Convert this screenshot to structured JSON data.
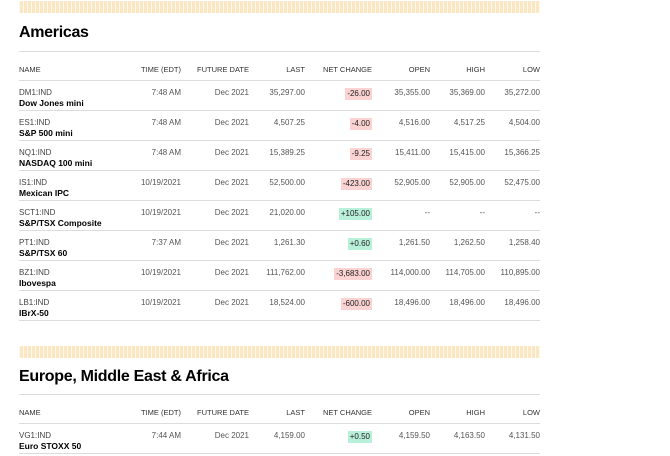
{
  "americas": {
    "title": "Americas",
    "headers": [
      "NAME",
      "TIME (EDT)",
      "FUTURE DATE",
      "LAST",
      "NET CHANGE",
      "OPEN",
      "HIGH",
      "LOW"
    ],
    "rows": [
      {
        "ticker": "DM1:IND",
        "name": "Dow Jones mini",
        "time": "7:48 AM",
        "date": "Dec 2021",
        "last": "35,297.00",
        "change": "-26.00",
        "direction": "down",
        "open": "35,355.00",
        "high": "35,369.00",
        "low": "35,272.00"
      },
      {
        "ticker": "ES1:IND",
        "name": "S&P 500 mini",
        "time": "7:48 AM",
        "date": "Dec 2021",
        "last": "4,507.25",
        "change": "-4.00",
        "direction": "down",
        "open": "4,516.00",
        "high": "4,517.25",
        "low": "4,504.00"
      },
      {
        "ticker": "NQ1:IND",
        "name": "NASDAQ 100 mini",
        "time": "7:48 AM",
        "date": "Dec 2021",
        "last": "15,389.25",
        "change": "-9.25",
        "direction": "down",
        "open": "15,411.00",
        "high": "15,415.00",
        "low": "15,366.25"
      },
      {
        "ticker": "IS1:IND",
        "name": "Mexican IPC",
        "time": "10/19/2021",
        "date": "Dec 2021",
        "last": "52,500.00",
        "change": "-423.00",
        "direction": "down",
        "open": "52,905.00",
        "high": "52,905.00",
        "low": "52,475.00"
      },
      {
        "ticker": "SCT1:IND",
        "name": "S&P/TSX Composite",
        "time": "10/19/2021",
        "date": "Dec 2021",
        "last": "21,020.00",
        "change": "+105.00",
        "direction": "up",
        "open": "--",
        "high": "--",
        "low": "--"
      },
      {
        "ticker": "PT1:IND",
        "name": "S&P/TSX 60",
        "time": "7:37 AM",
        "date": "Dec 2021",
        "last": "1,261.30",
        "change": "+0.60",
        "direction": "up",
        "open": "1,261.50",
        "high": "1,262.50",
        "low": "1,258.40"
      },
      {
        "ticker": "BZ1:IND",
        "name": "Ibovespa",
        "time": "10/19/2021",
        "date": "Dec 2021",
        "last": "111,762.00",
        "change": "-3,683.00",
        "direction": "down",
        "open": "114,000.00",
        "high": "114,705.00",
        "low": "110,895.00"
      },
      {
        "ticker": "LB1:IND",
        "name": "IBrX-50",
        "time": "10/19/2021",
        "date": "Dec 2021",
        "last": "18,524.00",
        "change": "-600.00",
        "direction": "down",
        "open": "18,496.00",
        "high": "18,496.00",
        "low": "18,496.00"
      }
    ]
  },
  "emea": {
    "title": "Europe, Middle East & Africa",
    "headers": [
      "NAME",
      "TIME (EDT)",
      "FUTURE DATE",
      "LAST",
      "NET CHANGE",
      "OPEN",
      "HIGH",
      "LOW"
    ],
    "rows": [
      {
        "ticker": "VG1:IND",
        "name": "Euro STOXX 50",
        "time": "7:44 AM",
        "date": "Dec 2021",
        "last": "4,159.00",
        "change": "+0.50",
        "direction": "up",
        "open": "4,159.50",
        "high": "4,163.50",
        "low": "4,131.50"
      }
    ]
  },
  "colors": {
    "negative_bg": "#fbd3d3",
    "positive_bg": "#b9f0d9",
    "stripe": "#fbe7c2"
  }
}
